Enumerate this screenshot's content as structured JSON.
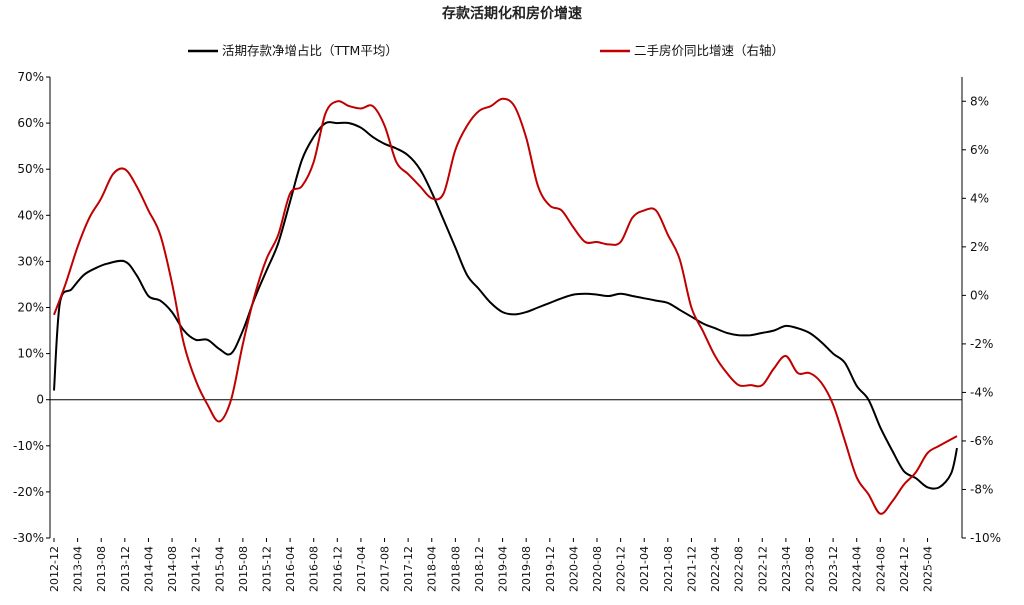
{
  "chart_data": {
    "type": "line",
    "title": "存款活期化和房价增速",
    "left_axis": {
      "ylim": [
        -30,
        70
      ],
      "ticks": [
        -30,
        -20,
        -10,
        0,
        10,
        20,
        30,
        40,
        50,
        60,
        70
      ],
      "tick_labels": [
        "-30%",
        "-20%",
        "-10%",
        "0",
        "10%",
        "20%",
        "30%",
        "40%",
        "50%",
        "60%",
        "70%"
      ]
    },
    "right_axis": {
      "ylim": [
        -10,
        9
      ],
      "ticks": [
        -10,
        -8,
        -6,
        -4,
        -2,
        0,
        2,
        4,
        6,
        8
      ],
      "tick_labels": [
        "-10%",
        "-8%",
        "-6%",
        "-4%",
        "-2%",
        "0%",
        "2%",
        "4%",
        "6%",
        "8%"
      ]
    },
    "x_tick_labels": [
      "2012-12",
      "2013-04",
      "2013-08",
      "2013-12",
      "2014-04",
      "2014-08",
      "2014-12",
      "2015-04",
      "2015-08",
      "2015-12",
      "2016-04",
      "2016-08",
      "2016-12",
      "2017-04",
      "2017-08",
      "2017-12",
      "2018-04",
      "2018-08",
      "2018-12",
      "2019-04",
      "2019-08",
      "2019-12",
      "2020-04",
      "2020-08",
      "2020-12",
      "2021-04",
      "2021-08",
      "2021-12",
      "2022-04",
      "2022-08",
      "2022-12",
      "2023-04",
      "2023-08",
      "2023-12",
      "2024-04",
      "2024-08",
      "2024-12",
      "2025-04"
    ],
    "legend_placement": "top",
    "series": [
      {
        "name": "活期存款净增占比（TTM平均）",
        "axis": "left",
        "color": "#000000",
        "points": [
          [
            "2012-12",
            2
          ],
          [
            "2013-01",
            21
          ],
          [
            "2013-03",
            24
          ],
          [
            "2013-05",
            27
          ],
          [
            "2013-07",
            28.5
          ],
          [
            "2013-09",
            29.5
          ],
          [
            "2013-12",
            30
          ],
          [
            "2014-02",
            27
          ],
          [
            "2014-04",
            22.5
          ],
          [
            "2014-06",
            21.5
          ],
          [
            "2014-08",
            19
          ],
          [
            "2014-10",
            15
          ],
          [
            "2014-12",
            13
          ],
          [
            "2015-02",
            13
          ],
          [
            "2015-04",
            11
          ],
          [
            "2015-06",
            10
          ],
          [
            "2015-08",
            15
          ],
          [
            "2015-10",
            22
          ],
          [
            "2015-12",
            28
          ],
          [
            "2016-02",
            34
          ],
          [
            "2016-04",
            43
          ],
          [
            "2016-06",
            52
          ],
          [
            "2016-08",
            57
          ],
          [
            "2016-10",
            60
          ],
          [
            "2016-12",
            60
          ],
          [
            "2017-02",
            60
          ],
          [
            "2017-04",
            59
          ],
          [
            "2017-06",
            57
          ],
          [
            "2017-08",
            55.5
          ],
          [
            "2017-10",
            54.5
          ],
          [
            "2017-12",
            53
          ],
          [
            "2018-02",
            50
          ],
          [
            "2018-04",
            45
          ],
          [
            "2018-06",
            39
          ],
          [
            "2018-08",
            33
          ],
          [
            "2018-10",
            27
          ],
          [
            "2018-12",
            24
          ],
          [
            "2019-02",
            21
          ],
          [
            "2019-04",
            19
          ],
          [
            "2019-06",
            18.5
          ],
          [
            "2019-08",
            19
          ],
          [
            "2019-10",
            20
          ],
          [
            "2019-12",
            21
          ],
          [
            "2020-02",
            22
          ],
          [
            "2020-04",
            22.8
          ],
          [
            "2020-06",
            23
          ],
          [
            "2020-08",
            22.8
          ],
          [
            "2020-10",
            22.5
          ],
          [
            "2020-12",
            23
          ],
          [
            "2021-02",
            22.5
          ],
          [
            "2021-04",
            22
          ],
          [
            "2021-06",
            21.5
          ],
          [
            "2021-08",
            21
          ],
          [
            "2021-10",
            19.5
          ],
          [
            "2021-12",
            18
          ],
          [
            "2022-02",
            16.5
          ],
          [
            "2022-04",
            15.5
          ],
          [
            "2022-06",
            14.5
          ],
          [
            "2022-08",
            14
          ],
          [
            "2022-10",
            14
          ],
          [
            "2022-12",
            14.5
          ],
          [
            "2023-02",
            15
          ],
          [
            "2023-04",
            16
          ],
          [
            "2023-06",
            15.5
          ],
          [
            "2023-08",
            14.5
          ],
          [
            "2023-10",
            12.5
          ],
          [
            "2023-12",
            10
          ],
          [
            "2024-02",
            8
          ],
          [
            "2024-04",
            3
          ],
          [
            "2024-06",
            0
          ],
          [
            "2024-08",
            -6
          ],
          [
            "2024-10",
            -11
          ],
          [
            "2024-12",
            -15.5
          ],
          [
            "2025-02",
            -17
          ],
          [
            "2025-04",
            -19
          ],
          [
            "2025-06",
            -19
          ],
          [
            "2025-08",
            -16
          ],
          [
            "2025-09",
            -10.5
          ]
        ]
      },
      {
        "name": "二手房价同比增速（右轴）",
        "axis": "right",
        "color": "#c00000",
        "points": [
          [
            "2012-12",
            -0.8
          ],
          [
            "2013-02",
            0.5
          ],
          [
            "2013-04",
            2
          ],
          [
            "2013-06",
            3.2
          ],
          [
            "2013-08",
            4
          ],
          [
            "2013-10",
            5
          ],
          [
            "2013-12",
            5.2
          ],
          [
            "2014-02",
            4.5
          ],
          [
            "2014-04",
            3.5
          ],
          [
            "2014-06",
            2.5
          ],
          [
            "2014-08",
            0.5
          ],
          [
            "2014-10",
            -2
          ],
          [
            "2014-12",
            -3.5
          ],
          [
            "2015-02",
            -4.5
          ],
          [
            "2015-04",
            -5.2
          ],
          [
            "2015-06",
            -4.3
          ],
          [
            "2015-08",
            -2
          ],
          [
            "2015-10",
            0
          ],
          [
            "2015-12",
            1.5
          ],
          [
            "2016-02",
            2.5
          ],
          [
            "2016-04",
            4.2
          ],
          [
            "2016-06",
            4.5
          ],
          [
            "2016-08",
            5.5
          ],
          [
            "2016-10",
            7.5
          ],
          [
            "2016-12",
            8
          ],
          [
            "2017-02",
            7.8
          ],
          [
            "2017-04",
            7.7
          ],
          [
            "2017-06",
            7.8
          ],
          [
            "2017-08",
            7
          ],
          [
            "2017-10",
            5.5
          ],
          [
            "2017-12",
            5
          ],
          [
            "2018-02",
            4.5
          ],
          [
            "2018-04",
            4
          ],
          [
            "2018-06",
            4.2
          ],
          [
            "2018-08",
            6
          ],
          [
            "2018-10",
            7
          ],
          [
            "2018-12",
            7.6
          ],
          [
            "2019-02",
            7.8
          ],
          [
            "2019-04",
            8.1
          ],
          [
            "2019-06",
            7.8
          ],
          [
            "2019-08",
            6.5
          ],
          [
            "2019-10",
            4.5
          ],
          [
            "2019-12",
            3.7
          ],
          [
            "2020-02",
            3.5
          ],
          [
            "2020-04",
            2.8
          ],
          [
            "2020-06",
            2.2
          ],
          [
            "2020-08",
            2.2
          ],
          [
            "2020-10",
            2.1
          ],
          [
            "2020-12",
            2.2
          ],
          [
            "2021-02",
            3.2
          ],
          [
            "2021-04",
            3.5
          ],
          [
            "2021-06",
            3.5
          ],
          [
            "2021-08",
            2.5
          ],
          [
            "2021-10",
            1.5
          ],
          [
            "2021-12",
            -0.5
          ],
          [
            "2022-02",
            -1.5
          ],
          [
            "2022-04",
            -2.5
          ],
          [
            "2022-06",
            -3.2
          ],
          [
            "2022-08",
            -3.7
          ],
          [
            "2022-10",
            -3.7
          ],
          [
            "2022-12",
            -3.7
          ],
          [
            "2023-02",
            -3
          ],
          [
            "2023-04",
            -2.5
          ],
          [
            "2023-06",
            -3.2
          ],
          [
            "2023-08",
            -3.2
          ],
          [
            "2023-10",
            -3.6
          ],
          [
            "2023-12",
            -4.5
          ],
          [
            "2024-02",
            -6
          ],
          [
            "2024-04",
            -7.5
          ],
          [
            "2024-06",
            -8.2
          ],
          [
            "2024-08",
            -9
          ],
          [
            "2024-10",
            -8.5
          ],
          [
            "2024-12",
            -7.8
          ],
          [
            "2025-02",
            -7.3
          ],
          [
            "2025-04",
            -6.5
          ],
          [
            "2025-06",
            -6.2
          ],
          [
            "2025-09",
            -5.8
          ]
        ]
      }
    ]
  }
}
